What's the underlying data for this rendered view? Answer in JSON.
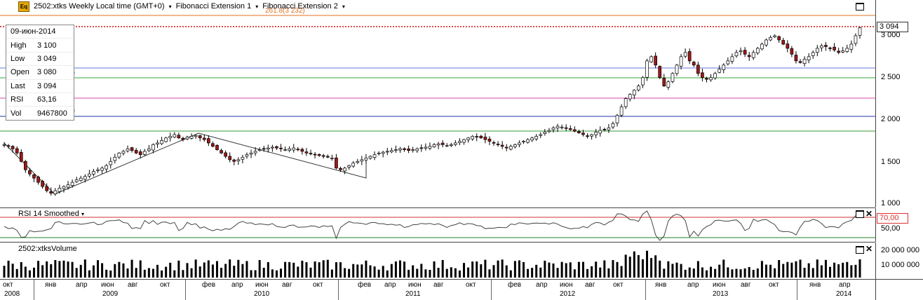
{
  "toolbar": {
    "logo": "Eq",
    "symbol": "2502:xtks Weekly Local time (GMT+0)",
    "study1": "Fibonacci Extension 1",
    "study2": "Fibonacci Extension 2",
    "fib_label": "261.8(3 232)"
  },
  "info": {
    "date": "09-июн-2014",
    "rows": [
      {
        "k": "High",
        "v": "3 100"
      },
      {
        "k": "Low",
        "v": "3 049"
      },
      {
        "k": "Open",
        "v": "3 080"
      },
      {
        "k": "Last",
        "v": "3 094"
      },
      {
        "k": "RSI",
        "v": "63,16"
      },
      {
        "k": "Vol",
        "v": "9467800"
      }
    ]
  },
  "price_axis": {
    "last": "3 094",
    "ticks": [
      "3 000",
      "2 500",
      "2 000",
      "1 500",
      "1 000"
    ]
  },
  "rsi": {
    "title": "RSI 14 Smoothed",
    "tag": "70,00",
    "ticks": [
      "50,00"
    ]
  },
  "volume": {
    "title": "2502:xtksVolume",
    "ticks": [
      "20 000 000",
      "10 000 000"
    ]
  },
  "xaxis": {
    "months": [
      "окт",
      "янв",
      "апр",
      "июн",
      "авг",
      "окт",
      "фев",
      "апр",
      "июн",
      "авг",
      "окт",
      "фев",
      "апр",
      "июн",
      "авг",
      "окт",
      "фев",
      "апр",
      "июн",
      "авг",
      "окт",
      "янв",
      "апр",
      "июн",
      "авг",
      "окт",
      "янв",
      "апр"
    ],
    "years": [
      "2008",
      "2009",
      "2010",
      "2011",
      "2012",
      "2013",
      "2014"
    ]
  },
  "colors": {
    "up": "#ffffff",
    "down": "#a01818",
    "last_line": "#d01010",
    "rsi70": "#d03030",
    "rsi30": "#208020",
    "fib_orange": "#e07020"
  },
  "chart_data": {
    "type": "candlestick",
    "interval": "weekly",
    "series": [
      {
        "name": "2502:xtks",
        "values": [
          1700,
          1680,
          1650,
          1600,
          1500,
          1400,
          1350,
          1300,
          1250,
          1200,
          1150,
          1120,
          1150,
          1180,
          1200,
          1220,
          1250,
          1280,
          1300,
          1320,
          1350,
          1380,
          1400,
          1420,
          1450,
          1500,
          1550,
          1600,
          1620,
          1650,
          1630,
          1600,
          1580,
          1620,
          1650,
          1700,
          1720,
          1750,
          1780,
          1800,
          1820,
          1780,
          1760,
          1790,
          1800,
          1810,
          1780,
          1760,
          1720,
          1680,
          1640,
          1600,
          1560,
          1520,
          1500,
          1520,
          1550,
          1580,
          1600,
          1620,
          1640,
          1650,
          1660,
          1670,
          1660,
          1650,
          1640,
          1650,
          1660,
          1640,
          1620,
          1600,
          1590,
          1580,
          1570,
          1560,
          1550,
          1540,
          1420,
          1400,
          1420,
          1450,
          1480,
          1500,
          1520,
          1540,
          1560,
          1580,
          1600,
          1610,
          1620,
          1630,
          1640,
          1650,
          1640,
          1630,
          1640,
          1650,
          1660,
          1670,
          1680,
          1700,
          1710,
          1700,
          1690,
          1700,
          1720,
          1740,
          1760,
          1780,
          1800,
          1790,
          1780,
          1760,
          1740,
          1720,
          1700,
          1680,
          1660,
          1680,
          1700,
          1720,
          1740,
          1760,
          1780,
          1800,
          1820,
          1850,
          1870,
          1900,
          1920,
          1910,
          1900,
          1880,
          1860,
          1840,
          1820,
          1800,
          1820,
          1850,
          1870,
          1880,
          1900,
          1950,
          2050,
          2150,
          2250,
          2300,
          2350,
          2400,
          2500,
          2700,
          2750,
          2650,
          2500,
          2400,
          2450,
          2550,
          2650,
          2750,
          2800,
          2700,
          2650,
          2550,
          2500,
          2480,
          2500,
          2550,
          2600,
          2650,
          2700,
          2750,
          2800,
          2820,
          2780,
          2750,
          2800,
          2850,
          2900,
          2950,
          2980,
          3000,
          2950,
          2900,
          2850,
          2780,
          2700,
          2680,
          2720,
          2750,
          2800,
          2850,
          2880,
          2870,
          2850,
          2830,
          2800,
          2820,
          2850,
          2900,
          3000,
          3094
        ]
      }
    ],
    "ylim": [
      900,
      3250
    ],
    "rsi_levels": [
      70,
      30
    ],
    "last": 3094
  }
}
